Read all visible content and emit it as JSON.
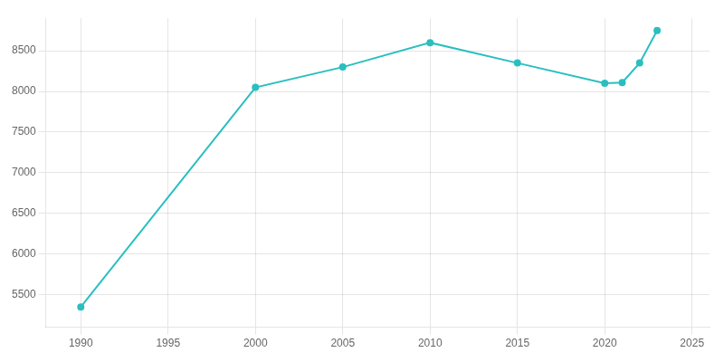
{
  "chart_data": {
    "type": "line",
    "x": [
      1990,
      2000,
      2005,
      2010,
      2015,
      2020,
      2021,
      2022,
      2023
    ],
    "values": [
      5350,
      8050,
      8300,
      8600,
      8350,
      8100,
      8110,
      8350,
      8750
    ],
    "color": "#2abfbf",
    "marker": "circle",
    "xlim": [
      1988,
      2026
    ],
    "ylim": [
      5100,
      8900
    ],
    "xticks": [
      1990,
      1995,
      2000,
      2005,
      2010,
      2015,
      2020,
      2025
    ],
    "yticks": [
      5500,
      6000,
      6500,
      7000,
      7500,
      8000,
      8500
    ],
    "grid": true
  }
}
